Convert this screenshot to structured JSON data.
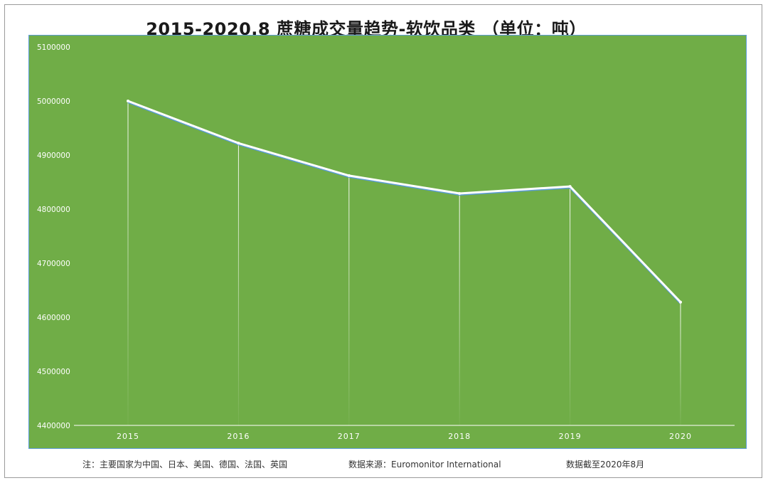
{
  "title": "2015-2020.8 蔗糖成交量趋势-软饮品类 （单位：吨）",
  "footer": {
    "note": "注：主要国家为中国、日本、美国、德国、法国、英国",
    "source": "数据来源：Euromonitor International",
    "cutoff": "数据截至2020年8月"
  },
  "colors": {
    "plot_background": "#70ad47",
    "plot_border": "#5b9bd5",
    "line": "#ffffff",
    "line_shadow": "#5b9bd5",
    "axis_text": "#ffffff"
  },
  "chart_data": {
    "type": "line",
    "title": "2015-2020.8 蔗糖成交量趋势-软饮品类 （单位：吨）",
    "xlabel": "",
    "ylabel": "",
    "categories": [
      "2015",
      "2016",
      "2017",
      "2018",
      "2019",
      "2020"
    ],
    "series": [
      {
        "values": [
          5000000,
          4922000,
          4862000,
          4829000,
          4842000,
          4628000
        ]
      }
    ],
    "ylim": [
      4400000,
      5100000
    ],
    "yticks": [
      "4400000",
      "4500000",
      "4600000",
      "4700000",
      "4800000",
      "4900000",
      "5000000",
      "5100000"
    ],
    "grid": false,
    "drop_lines": true,
    "legend": "none"
  }
}
